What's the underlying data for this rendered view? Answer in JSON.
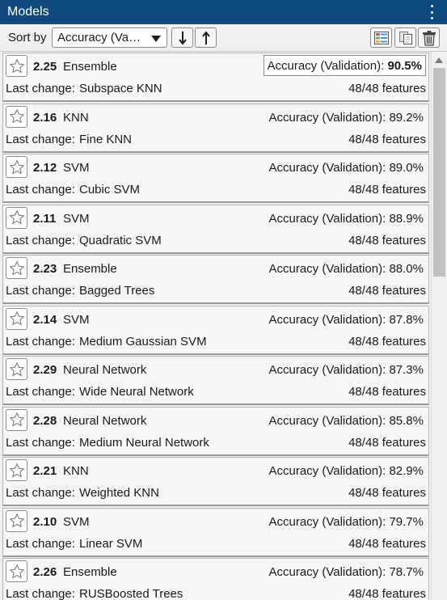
{
  "header": {
    "title": "Models"
  },
  "toolbar": {
    "sort_label": "Sort by",
    "sort_value": "Accuracy (Va…",
    "sort_desc_icon": "arrow-down-icon",
    "sort_asc_icon": "arrow-up-icon",
    "layout_icon": "layout-icon",
    "duplicate_icon": "duplicate-icon",
    "delete_icon": "trash-icon"
  },
  "models": [
    {
      "number": "2.25",
      "type": "Ensemble",
      "metric_label": "Accuracy (Validation): ",
      "metric_value": "90.5%",
      "last_change_label": "Last change:",
      "last_change": "Subspace KNN",
      "features": "48/48 features",
      "highlighted": true
    },
    {
      "number": "2.16",
      "type": "KNN",
      "metric_label": "Accuracy (Validation): ",
      "metric_value": "89.2%",
      "last_change_label": "Last change:",
      "last_change": "Fine KNN",
      "features": "48/48 features"
    },
    {
      "number": "2.12",
      "type": "SVM",
      "metric_label": "Accuracy (Validation): ",
      "metric_value": "89.0%",
      "last_change_label": "Last change:",
      "last_change": "Cubic SVM",
      "features": "48/48 features"
    },
    {
      "number": "2.11",
      "type": "SVM",
      "metric_label": "Accuracy (Validation): ",
      "metric_value": "88.9%",
      "last_change_label": "Last change:",
      "last_change": "Quadratic SVM",
      "features": "48/48 features"
    },
    {
      "number": "2.23",
      "type": "Ensemble",
      "metric_label": "Accuracy (Validation): ",
      "metric_value": "88.0%",
      "last_change_label": "Last change:",
      "last_change": "Bagged Trees",
      "features": "48/48 features"
    },
    {
      "number": "2.14",
      "type": "SVM",
      "metric_label": "Accuracy (Validation): ",
      "metric_value": "87.8%",
      "last_change_label": "Last change:",
      "last_change": "Medium Gaussian SVM",
      "features": "48/48 features"
    },
    {
      "number": "2.29",
      "type": "Neural Network",
      "metric_label": "Accuracy (Validation): ",
      "metric_value": "87.3%",
      "last_change_label": "Last change:",
      "last_change": "Wide Neural Network",
      "features": "48/48 features"
    },
    {
      "number": "2.28",
      "type": "Neural Network",
      "metric_label": "Accuracy (Validation): ",
      "metric_value": "85.8%",
      "last_change_label": "Last change:",
      "last_change": "Medium Neural Network",
      "features": "48/48 features"
    },
    {
      "number": "2.21",
      "type": "KNN",
      "metric_label": "Accuracy (Validation): ",
      "metric_value": "82.9%",
      "last_change_label": "Last change:",
      "last_change": "Weighted KNN",
      "features": "48/48 features"
    },
    {
      "number": "2.10",
      "type": "SVM",
      "metric_label": "Accuracy (Validation): ",
      "metric_value": "79.7%",
      "last_change_label": "Last change:",
      "last_change": "Linear SVM",
      "features": "48/48 features"
    },
    {
      "number": "2.26",
      "type": "Ensemble",
      "metric_label": "Accuracy (Validation): ",
      "metric_value": "78.7%",
      "last_change_label": "Last change:",
      "last_change": "RUSBoosted Trees",
      "features": "48/48 features"
    }
  ],
  "colors": {
    "header_bg": "#0e4a7e",
    "panel_bg": "#f0f0f0",
    "card_bg": "#f6f6f6"
  }
}
